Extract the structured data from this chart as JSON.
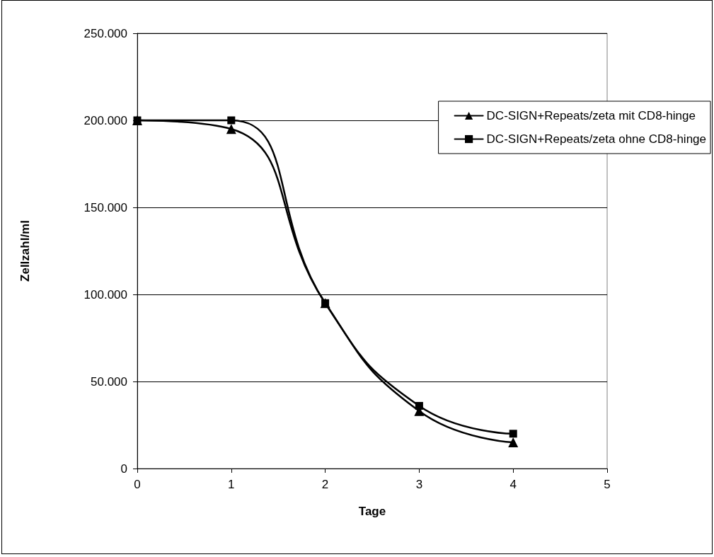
{
  "chart_data": {
    "type": "line",
    "xlabel": "Tage",
    "ylabel": "Zellzahl/ml",
    "x": [
      0,
      1,
      2,
      3,
      4
    ],
    "series": [
      {
        "name": "DC-SIGN+Repeats/zeta mit CD8-hinge",
        "color": "#000000",
        "marker": "triangle",
        "values": [
          200000,
          195000,
          95000,
          33000,
          15000
        ]
      },
      {
        "name": "DC-SIGN+Repeats/zeta ohne CD8-hinge",
        "color": "#000000",
        "marker": "square",
        "values": [
          200000,
          200000,
          95000,
          36000,
          20000
        ]
      }
    ],
    "xlim": [
      0,
      5
    ],
    "xticks": [
      0,
      1,
      2,
      3,
      4,
      5
    ],
    "ylim": [
      0,
      250000
    ],
    "yticks": [
      0,
      {
        "value": 50000,
        "label": "50.000"
      },
      {
        "value": 100000,
        "label": "100.000"
      },
      {
        "value": 150000,
        "label": "150.000"
      },
      {
        "value": 200000,
        "label": "200.000"
      },
      {
        "value": 250000,
        "label": "250.000"
      }
    ],
    "grid": "y",
    "legend": "top right",
    "line_style": "solid"
  }
}
